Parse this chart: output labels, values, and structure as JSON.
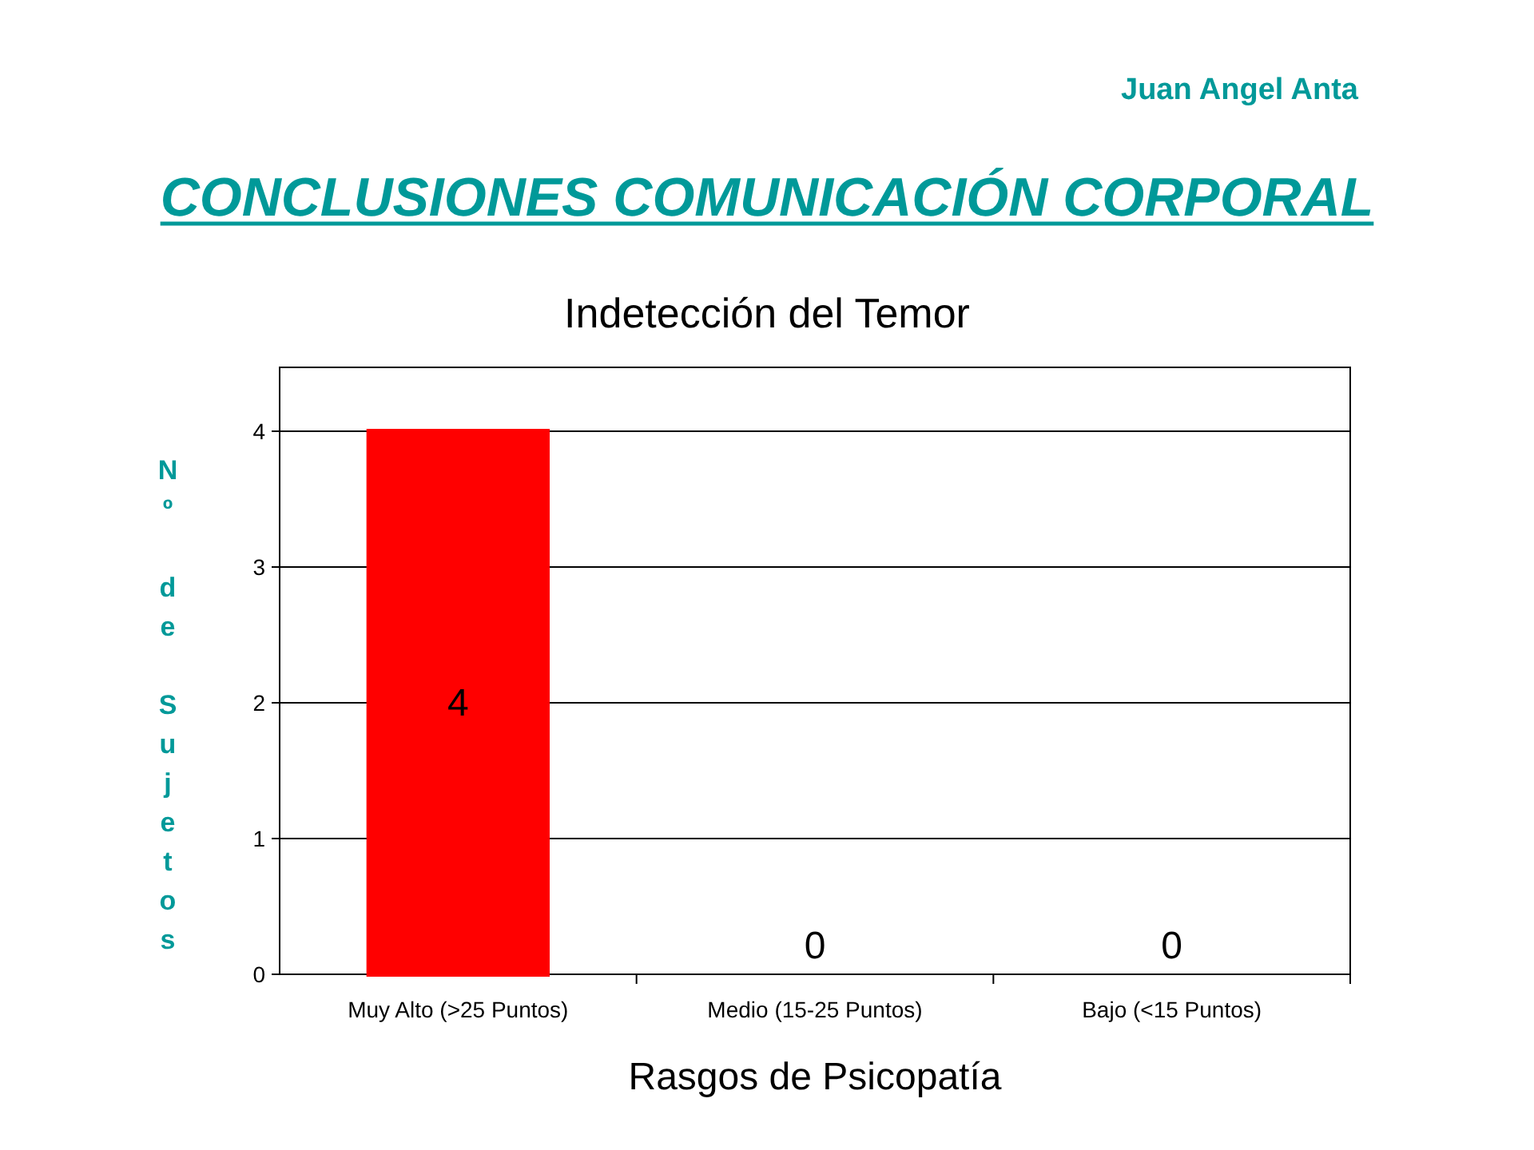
{
  "chart_data": {
    "type": "bar",
    "title": "Indetección del Temor",
    "subtitle": "CONCLUSIONES COMUNICACIÓN CORPORAL",
    "annotations": [
      "Juan Angel Anta"
    ],
    "xlabel": "Rasgos de Psicopatía",
    "ylabel": "Nº de Sujetos",
    "categories": [
      "Muy Alto (>25 Puntos)",
      "Medio (15-25 Puntos)",
      "Bajo (<15 Puntos)"
    ],
    "values": [
      4,
      0,
      0
    ],
    "colors": [
      "#ff0000",
      "#c04f00",
      "#c0c000"
    ],
    "ylim": [
      0,
      4
    ],
    "yticks": [
      0,
      1,
      2,
      3,
      4
    ],
    "grid": "y",
    "data_labels": true
  }
}
